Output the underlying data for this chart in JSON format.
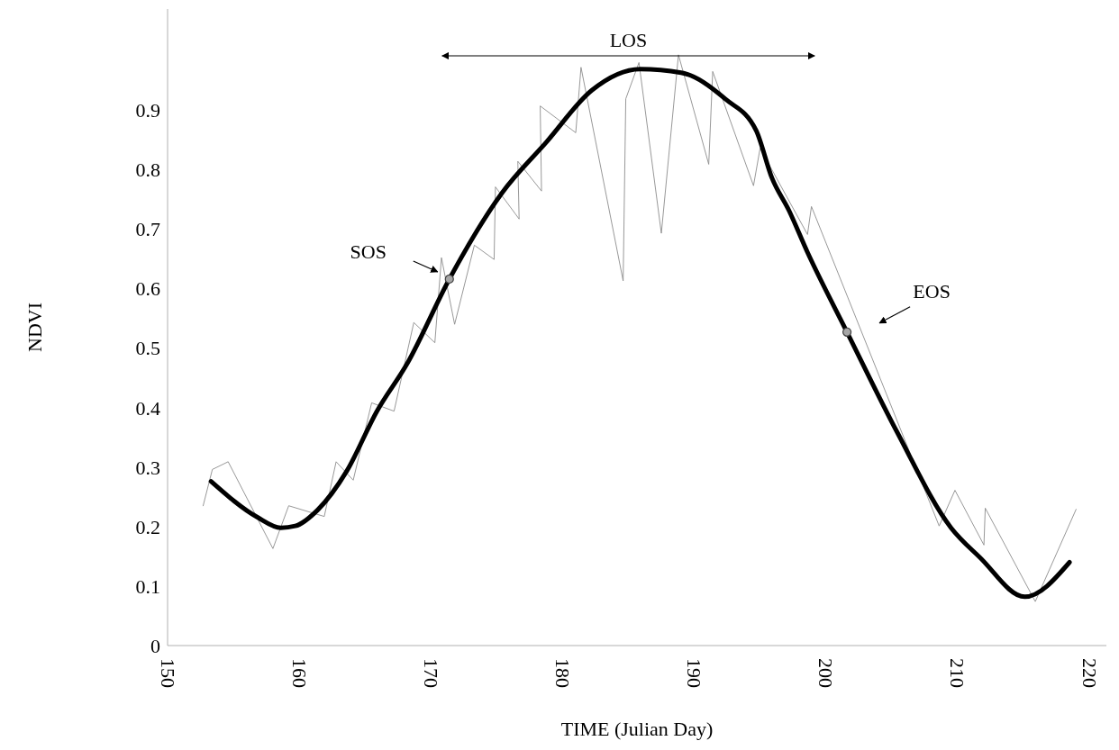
{
  "chart_data": {
    "type": "line",
    "xlabel": "TIME (Julian Day)",
    "ylabel": "NDVI",
    "xlim": [
      150,
      221.3
    ],
    "xticks": [
      150,
      160,
      170,
      180,
      190,
      200,
      210,
      220
    ],
    "ylim": [
      0,
      1.07
    ],
    "yticks": [
      0,
      0.1,
      0.2,
      0.3,
      0.4,
      0.5,
      0.6,
      0.7,
      0.8,
      0.9
    ],
    "grid": false,
    "marker": "none",
    "line_style": "solid",
    "series": [
      {
        "color": "#8c8c8c",
        "x": [
          152.7,
          153.4,
          154.6,
          158.0,
          159.2,
          161.9,
          162.8,
          164.1,
          165.5,
          167.2,
          168.7,
          170.3,
          170.8,
          171.8,
          173.3,
          174.8,
          174.9,
          176.7,
          176.6,
          178.4,
          178.3,
          181.0,
          181.4,
          184.6,
          184.8,
          185.8,
          187.5,
          188.8,
          191.1,
          191.4,
          194.5,
          195.0,
          198.6,
          198.9,
          208.6,
          209.8,
          212.0,
          212.1,
          215.9,
          219.0
        ],
        "values": [
          0.235,
          0.296,
          0.309,
          0.163,
          0.235,
          0.217,
          0.309,
          0.278,
          0.408,
          0.394,
          0.543,
          0.509,
          0.652,
          0.54,
          0.673,
          0.649,
          0.771,
          0.717,
          0.814,
          0.764,
          0.907,
          0.862,
          0.972,
          0.613,
          0.919,
          0.98,
          0.693,
          0.993,
          0.809,
          0.965,
          0.773,
          0.836,
          0.691,
          0.738,
          0.201,
          0.261,
          0.169,
          0.231,
          0.074,
          0.229
        ]
      },
      {
        "color": "#000000",
        "x": [
          153.3,
          156.8,
          158.6,
          159.7,
          161.4,
          163.6,
          165.9,
          168.2,
          171.4,
          175.4,
          178.8,
          182.2,
          185.9,
          189.0,
          192.4,
          194.7,
          195.9,
          197.2,
          198.6,
          201.6,
          205.4,
          209.5,
          211.7,
          215.1,
          218.5
        ],
        "values": [
          0.276,
          0.216,
          0.198,
          0.201,
          0.228,
          0.293,
          0.394,
          0.474,
          0.616,
          0.761,
          0.847,
          0.933,
          0.969,
          0.963,
          0.918,
          0.866,
          0.786,
          0.731,
          0.661,
          0.527,
          0.359,
          0.198,
          0.148,
          0.082,
          0.14
        ]
      },
      {
        "type": "scatter",
        "color": "#a6a6a6",
        "marker": "circle",
        "x": [
          171.4,
          201.6
        ],
        "values": [
          0.616,
          0.527
        ]
      }
    ],
    "annotations": [
      "LOS",
      "SOS",
      "EOS"
    ]
  }
}
